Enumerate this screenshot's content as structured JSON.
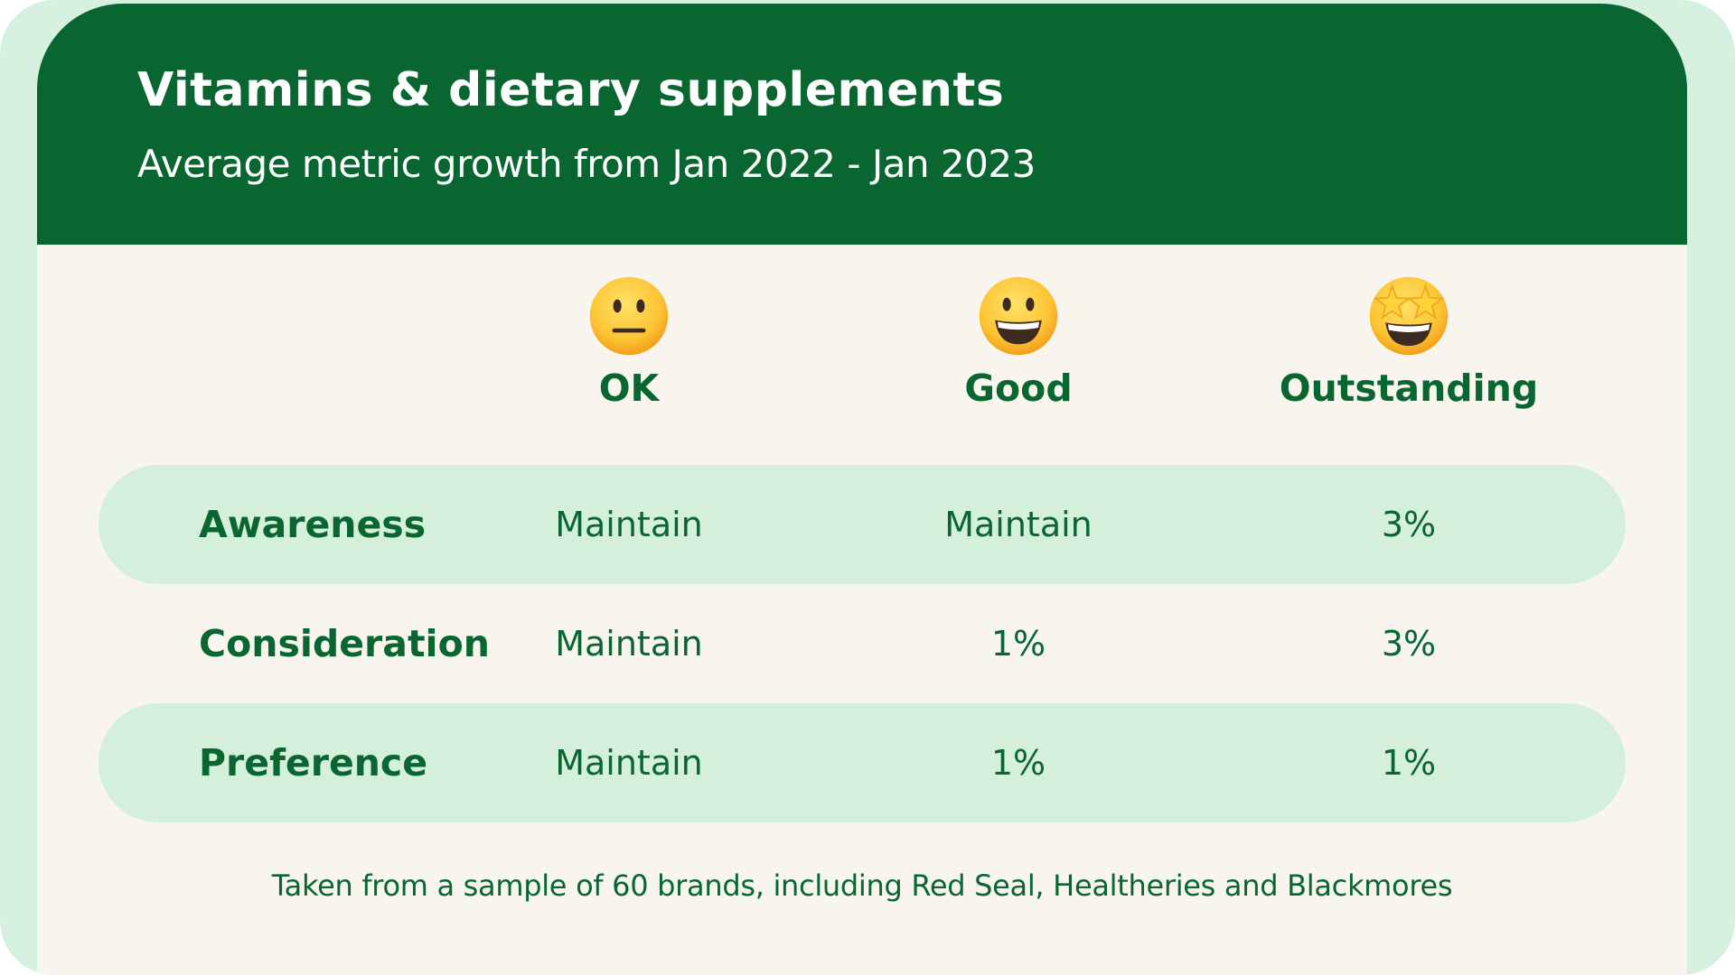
{
  "chart_data": {
    "type": "table",
    "title": "Vitamins & dietary supplements",
    "subtitle": "Average metric growth from Jan 2022 - Jan 2023",
    "columns": [
      {
        "label": "OK",
        "icon": "neutral-face-emoji-icon"
      },
      {
        "label": "Good",
        "icon": "grinning-face-emoji-icon"
      },
      {
        "label": "Outstanding",
        "icon": "star-struck-emoji-icon"
      }
    ],
    "rows": [
      {
        "metric": "Awareness",
        "values": [
          "Maintain",
          "Maintain",
          "3%"
        ]
      },
      {
        "metric": "Consideration",
        "values": [
          "Maintain",
          "1%",
          "3%"
        ]
      },
      {
        "metric": "Preference",
        "values": [
          "Maintain",
          "1%",
          "1%"
        ]
      }
    ],
    "footnote": "Taken from a sample of 60 brands, including Red Seal, Healtheries and Blackmores"
  },
  "colors": {
    "header_green": "#0a6630",
    "text_green": "#0a6630",
    "band_mint": "#d5f0da",
    "card_cream": "#f8f5ef",
    "outer_mint": "#d7f1e0",
    "emoji_yellow": "#f7b52b",
    "star_yellow": "#ffd43b"
  }
}
